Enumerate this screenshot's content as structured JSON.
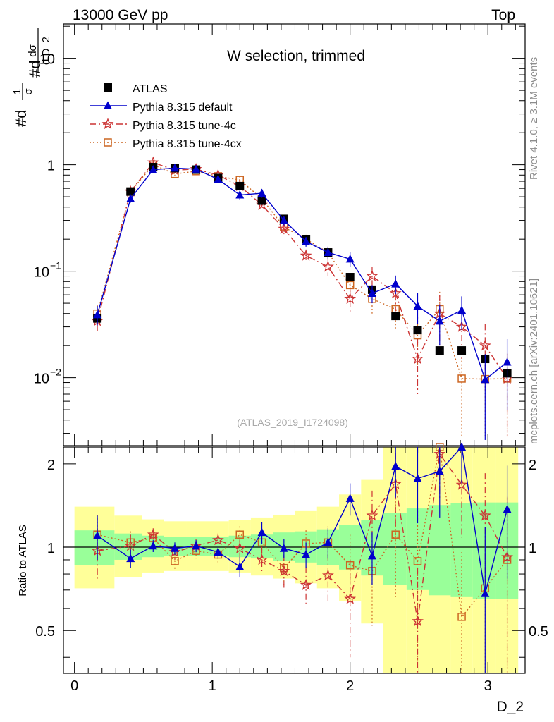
{
  "header": {
    "left": "13000 GeV pp",
    "right": "Top"
  },
  "side": {
    "rivet": "Rivet 4.1.0, ≥ 3.1M events",
    "mcplots": "mcplots.cern.ch [arXiv:2401.10621]"
  },
  "axis_titles": {
    "ylabel": "#d¹⁄σ #d dσ⁄d D_2",
    "ylabel_parts": [
      "#d",
      "1",
      "σ",
      "#d",
      "dσ",
      "d D_2"
    ],
    "ratio_ylabel": "Ratio to ATLAS",
    "xlabel": "D_2"
  },
  "chart_data": {
    "type": "scatter",
    "title": "W selection, trimmed",
    "watermark": "(ATLAS_2019_I1724098)",
    "xlabel": "D_2",
    "ylabel": "1/σ dσ/d D_2",
    "xlim": [
      -0.08,
      3.27
    ],
    "main_ylim_log": [
      0.0023,
      21
    ],
    "ratio_ylim": [
      0.35,
      2.3
    ],
    "x_ticks": [
      "0",
      "1",
      "2",
      "3"
    ],
    "y_ticks_main": [
      {
        "v": 10,
        "base": "10",
        "exp": ""
      },
      {
        "v": 1,
        "base": "1",
        "exp": ""
      },
      {
        "v": 0.1,
        "base": "10",
        "exp": "−1"
      },
      {
        "v": 0.01,
        "base": "10",
        "exp": "−2"
      }
    ],
    "y_ticks_ratio": [
      "0.5",
      "1",
      "2"
    ],
    "x": [
      0.166,
      0.407,
      0.571,
      0.728,
      0.882,
      1.042,
      1.2,
      1.36,
      1.52,
      1.68,
      1.84,
      2.0,
      2.16,
      2.33,
      2.49,
      2.65,
      2.81,
      2.98,
      3.14
    ],
    "band_edges": [
      0.0,
      0.29,
      0.49,
      0.65,
      0.81,
      0.96,
      1.12,
      1.28,
      1.44,
      1.6,
      1.76,
      1.92,
      2.08,
      2.24,
      2.41,
      2.57,
      2.73,
      2.89,
      3.06,
      3.22
    ],
    "band_green": [
      [
        0.86,
        1.15
      ],
      [
        0.9,
        1.12
      ],
      [
        0.92,
        1.1
      ],
      [
        0.93,
        1.09
      ],
      [
        0.93,
        1.09
      ],
      [
        0.93,
        1.09
      ],
      [
        0.92,
        1.1
      ],
      [
        0.91,
        1.11
      ],
      [
        0.89,
        1.13
      ],
      [
        0.88,
        1.14
      ],
      [
        0.86,
        1.16
      ],
      [
        0.83,
        1.2
      ],
      [
        0.79,
        1.25
      ],
      [
        0.73,
        1.33
      ],
      [
        0.7,
        1.38
      ],
      [
        0.67,
        1.42
      ],
      [
        0.66,
        1.44
      ],
      [
        0.65,
        1.45
      ],
      [
        0.65,
        1.45
      ]
    ],
    "band_yellow": [
      [
        0.71,
        1.4
      ],
      [
        0.78,
        1.3
      ],
      [
        0.81,
        1.26
      ],
      [
        0.82,
        1.24
      ],
      [
        0.82,
        1.24
      ],
      [
        0.82,
        1.24
      ],
      [
        0.81,
        1.25
      ],
      [
        0.79,
        1.28
      ],
      [
        0.77,
        1.31
      ],
      [
        0.74,
        1.35
      ],
      [
        0.71,
        1.4
      ],
      [
        0.64,
        1.55
      ],
      [
        0.53,
        1.75
      ],
      [
        0.35,
        2.3
      ],
      [
        0.35,
        2.3
      ],
      [
        0.35,
        2.3
      ],
      [
        0.35,
        2.3
      ],
      [
        0.35,
        2.3
      ],
      [
        0.35,
        2.3
      ]
    ],
    "ratio_reference": 1,
    "series": [
      {
        "name": "ATLAS",
        "color": "#000000",
        "marker": "square-filled",
        "line": "none",
        "values": [
          0.036,
          0.56,
          0.95,
          0.93,
          0.9,
          0.75,
          0.63,
          0.46,
          0.31,
          0.2,
          0.15,
          0.088,
          0.067,
          0.038,
          0.028,
          0.018,
          0.018,
          0.015,
          0.011
        ],
        "ratio": [
          1,
          1,
          1,
          1,
          1,
          1,
          1,
          1,
          1,
          1,
          1,
          1,
          1,
          1,
          1,
          1,
          1,
          1,
          1
        ]
      },
      {
        "name": "Pythia 8.315 default",
        "color": "#0000cc",
        "marker": "triangle",
        "line": "solid",
        "values": [
          0.039,
          0.48,
          0.9,
          0.93,
          0.91,
          0.73,
          0.52,
          0.54,
          0.3,
          0.19,
          0.15,
          0.13,
          0.062,
          0.076,
          0.047,
          0.034,
          0.043,
          0.0096,
          0.014
        ],
        "errors": [
          0.008,
          0.04,
          0.05,
          0.05,
          0.05,
          0.05,
          0.05,
          0.05,
          0.03,
          0.02,
          0.02,
          0.02,
          0.012,
          0.015,
          0.015,
          0.014,
          0.015,
          0.007,
          0.009
        ],
        "ratio": [
          1.1,
          0.91,
          1.01,
          0.99,
          1.01,
          0.96,
          0.85,
          1.13,
          0.99,
          0.94,
          1.04,
          1.5,
          0.93,
          1.96,
          1.77,
          1.88,
          2.3,
          0.68,
          1.37
        ],
        "ratio_err": [
          0.2,
          0.07,
          0.05,
          0.05,
          0.05,
          0.05,
          0.07,
          0.1,
          0.08,
          0.1,
          0.13,
          0.2,
          0.2,
          0.45,
          0.55,
          0.6,
          0.6,
          0.5,
          0.6
        ]
      },
      {
        "name": "Pythia 8.315 tune-4c",
        "color": "#cc3333",
        "marker": "star",
        "line": "dash-dot",
        "values": [
          0.034,
          0.56,
          1.05,
          0.89,
          0.91,
          0.8,
          0.63,
          0.42,
          0.25,
          0.14,
          0.11,
          0.055,
          0.09,
          0.062,
          0.015,
          0.04,
          0.03,
          0.02,
          0.0098
        ],
        "errors": [
          0.008,
          0.05,
          0.06,
          0.05,
          0.05,
          0.05,
          0.05,
          0.04,
          0.03,
          0.02,
          0.02,
          0.015,
          0.02,
          0.02,
          0.008,
          0.02,
          0.015,
          0.012,
          0.007
        ],
        "ratio": [
          0.97,
          1.01,
          1.11,
          0.96,
          1.01,
          1.06,
          0.99,
          0.9,
          0.82,
          0.73,
          0.79,
          0.65,
          1.3,
          1.69,
          0.54,
          2.17,
          1.68,
          1.3,
          0.92
        ],
        "ratio_err": [
          0.2,
          0.1,
          0.06,
          0.06,
          0.06,
          0.06,
          0.08,
          0.1,
          0.12,
          0.12,
          0.15,
          0.25,
          0.3,
          0.5,
          0.3,
          0.7,
          0.6,
          0.55,
          0.6
        ]
      },
      {
        "name": "Pythia 8.315 tune-4cx",
        "color": "#cc6622",
        "marker": "square-open",
        "line": "dotted",
        "values": [
          0.04,
          0.56,
          1.0,
          0.82,
          0.87,
          0.78,
          0.72,
          0.48,
          0.26,
          0.2,
          0.15,
          0.074,
          0.055,
          0.044,
          0.025,
          0.044,
          0.0098,
          0.0097,
          0.0098
        ],
        "errors": [
          0.008,
          0.05,
          0.06,
          0.05,
          0.05,
          0.05,
          0.05,
          0.04,
          0.03,
          0.02,
          0.02,
          0.015,
          0.015,
          0.015,
          0.012,
          0.02,
          0.007,
          0.007,
          0.007
        ],
        "ratio": [
          1.11,
          1.04,
          1.08,
          0.89,
          0.97,
          0.94,
          1.11,
          1.04,
          0.84,
          1.03,
          1.04,
          0.86,
          0.82,
          1.11,
          0.89,
          2.3,
          0.56,
          0.71,
          0.9
        ],
        "ratio_err": [
          0.2,
          0.1,
          0.06,
          0.06,
          0.06,
          0.06,
          0.08,
          0.1,
          0.12,
          0.12,
          0.15,
          0.25,
          0.3,
          0.45,
          0.5,
          0.7,
          0.4,
          0.45,
          0.6
        ]
      }
    ]
  }
}
